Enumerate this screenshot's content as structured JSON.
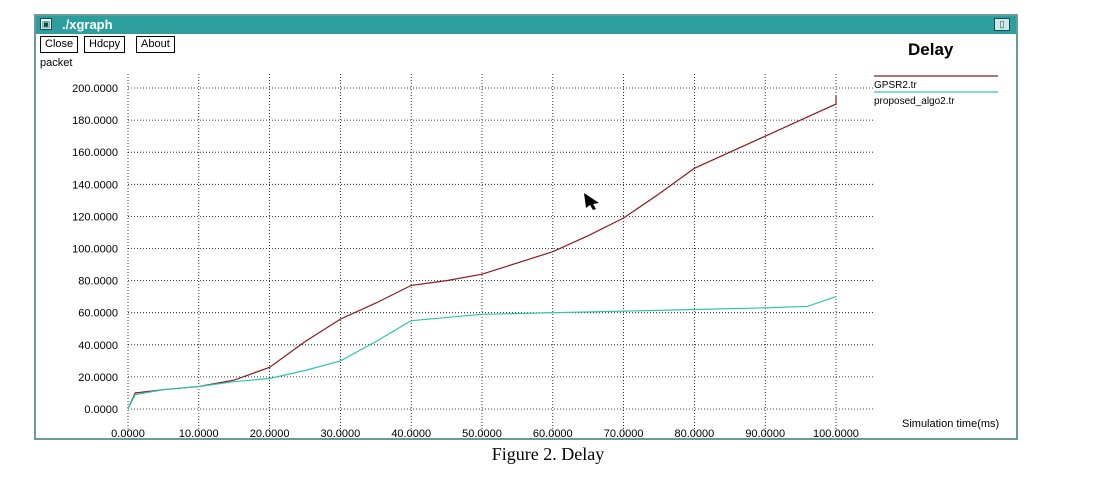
{
  "window": {
    "title": "./xgraph",
    "buttons": {
      "close": "Close",
      "hdcpy": "Hdcpy",
      "about": "About"
    }
  },
  "chart_data": {
    "type": "line",
    "title": "Delay",
    "ylabel": "packet",
    "xlabel": "Simulation time(ms)",
    "xlim": [
      0,
      100
    ],
    "ylim": [
      0,
      200
    ],
    "x_ticks": [
      0,
      10,
      20,
      30,
      40,
      50,
      60,
      70,
      80,
      90,
      100
    ],
    "x_tick_labels": [
      "0.0000",
      "10.0000",
      "20.0000",
      "30.0000",
      "40.0000",
      "50.0000",
      "60.0000",
      "70.0000",
      "80.0000",
      "90.0000",
      "100.0000"
    ],
    "y_ticks": [
      0,
      20,
      40,
      60,
      80,
      100,
      120,
      140,
      160,
      180,
      200
    ],
    "y_tick_labels": [
      "0.0000",
      "20.0000",
      "40.0000",
      "60.0000",
      "80.0000",
      "100.0000",
      "120.0000",
      "140.0000",
      "160.0000",
      "180.0000",
      "200.0000"
    ],
    "grid": true,
    "legend_position": "top-right",
    "series": [
      {
        "name": "GPSR2.tr",
        "color": "#8b1a1a",
        "points": [
          [
            0,
            0
          ],
          [
            1,
            10
          ],
          [
            5,
            12
          ],
          [
            10,
            14
          ],
          [
            15,
            18
          ],
          [
            20,
            26
          ],
          [
            25,
            42
          ],
          [
            30,
            56
          ],
          [
            35,
            66
          ],
          [
            40,
            77
          ],
          [
            45,
            80
          ],
          [
            50,
            84
          ],
          [
            55,
            91
          ],
          [
            60,
            98
          ],
          [
            65,
            108
          ],
          [
            70,
            119
          ],
          [
            75,
            134
          ],
          [
            80,
            150
          ],
          [
            85,
            160
          ],
          [
            90,
            170
          ],
          [
            95,
            180
          ],
          [
            100,
            190
          ],
          [
            100,
            195
          ]
        ]
      },
      {
        "name": "proposed_algo2.tr",
        "color": "#2ec4b0",
        "points": [
          [
            0,
            0
          ],
          [
            1,
            9
          ],
          [
            5,
            12
          ],
          [
            10,
            14
          ],
          [
            15,
            17
          ],
          [
            20,
            19
          ],
          [
            25,
            24
          ],
          [
            30,
            30
          ],
          [
            35,
            42
          ],
          [
            40,
            55
          ],
          [
            50,
            59
          ],
          [
            60,
            60
          ],
          [
            70,
            61
          ],
          [
            80,
            62
          ],
          [
            90,
            63
          ],
          [
            96,
            64
          ],
          [
            100,
            70
          ]
        ]
      }
    ]
  },
  "caption": "Figure 2. Delay"
}
